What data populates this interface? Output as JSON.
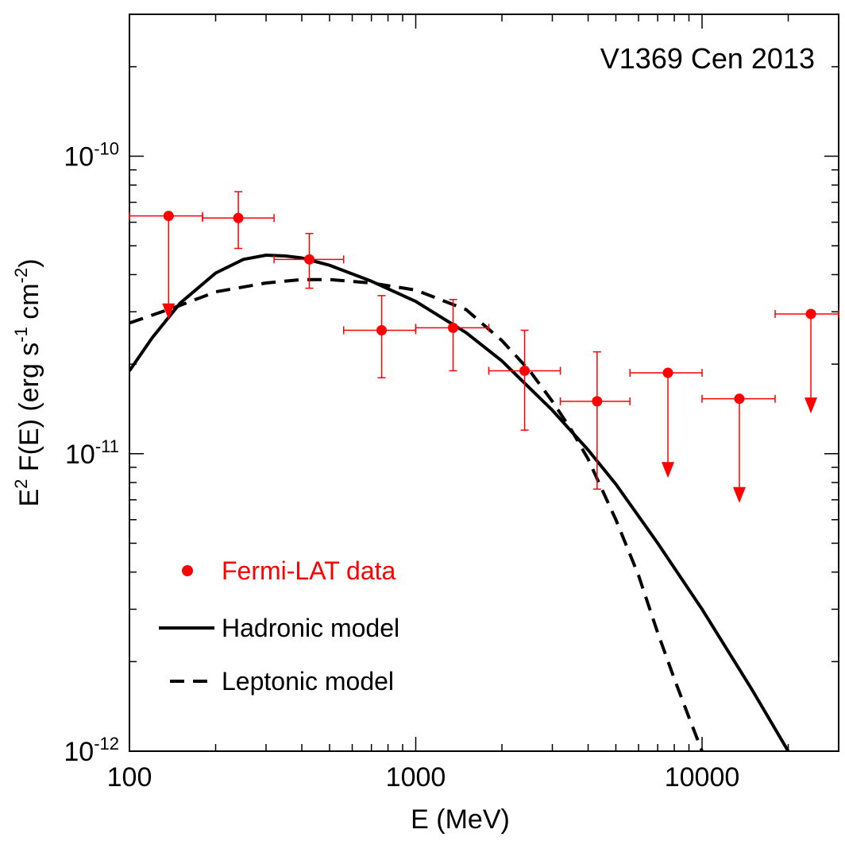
{
  "chart_data": {
    "type": "scatter",
    "title": "V1369 Cen 2013",
    "xlabel": "E (MeV)",
    "ylabel": {
      "base": "E",
      "sup1": "2",
      "mid": " F(E) (erg s",
      "sup2": "-1",
      "mid2": " cm",
      "sup3": "-2",
      "end": ")"
    },
    "xscale": "log",
    "yscale": "log",
    "xlim": [
      100,
      30000
    ],
    "ylim": [
      1e-12,
      3e-10
    ],
    "x_ticks": [
      {
        "value": 100,
        "label": "100"
      },
      {
        "value": 1000,
        "label": "1000"
      },
      {
        "value": 10000,
        "label": "10000"
      }
    ],
    "y_ticks": [
      {
        "value": 1e-12,
        "base": "10",
        "exp": "-12"
      },
      {
        "value": 1e-11,
        "base": "10",
        "exp": "-11"
      },
      {
        "value": 1e-10,
        "base": "10",
        "exp": "-10"
      }
    ],
    "legend": {
      "position": "bottom-left",
      "entries": [
        {
          "label": "Fermi-LAT data",
          "style": "marker",
          "color": "#ff0000"
        },
        {
          "label": "Hadronic model",
          "style": "solid",
          "color": "#000000"
        },
        {
          "label": "Leptonic model",
          "style": "dashed",
          "color": "#000000"
        }
      ]
    },
    "series": [
      {
        "name": "Fermi-LAT data",
        "color": "#ff0000",
        "points": [
          {
            "x": 137,
            "xlo": 100,
            "xhi": 180,
            "y": 6.3e-11,
            "upper_limit": true,
            "arrow_to": 2.9e-11
          },
          {
            "x": 240,
            "xlo": 180,
            "xhi": 320,
            "y": 6.2e-11,
            "ylo": 4.9e-11,
            "yhi": 7.6e-11
          },
          {
            "x": 425,
            "xlo": 320,
            "xhi": 560,
            "y": 4.5e-11,
            "ylo": 3.6e-11,
            "yhi": 5.5e-11
          },
          {
            "x": 760,
            "xlo": 560,
            "xhi": 1000,
            "y": 2.6e-11,
            "ylo": 1.8e-11,
            "yhi": 3.4e-11
          },
          {
            "x": 1350,
            "xlo": 1000,
            "xhi": 1800,
            "y": 2.65e-11,
            "ylo": 1.9e-11,
            "yhi": 3.3e-11
          },
          {
            "x": 2400,
            "xlo": 1800,
            "xhi": 3200,
            "y": 1.9e-11,
            "ylo": 1.2e-11,
            "yhi": 2.6e-11
          },
          {
            "x": 4300,
            "xlo": 3200,
            "xhi": 5600,
            "y": 1.5e-11,
            "ylo": 7.6e-12,
            "yhi": 2.2e-11
          },
          {
            "x": 7600,
            "xlo": 5600,
            "xhi": 10000,
            "y": 1.87e-11,
            "upper_limit": true,
            "arrow_to": 8.5e-12
          },
          {
            "x": 13500,
            "xlo": 10000,
            "xhi": 18000,
            "y": 1.53e-11,
            "upper_limit": true,
            "arrow_to": 7e-12
          },
          {
            "x": 24000,
            "xlo": 18000,
            "xhi": 30000,
            "y": 2.95e-11,
            "upper_limit": true,
            "arrow_to": 1.4e-11
          }
        ]
      },
      {
        "name": "Hadronic model",
        "style": "solid",
        "color": "#000000",
        "x": [
          100,
          120,
          150,
          200,
          250,
          300,
          350,
          400,
          500,
          700,
          1000,
          1500,
          2000,
          3000,
          4000,
          5000,
          7000,
          10000,
          15000,
          20000
        ],
        "y": [
          1.9e-11,
          2.45e-11,
          3.2e-11,
          4.05e-11,
          4.5e-11,
          4.65e-11,
          4.62e-11,
          4.55e-11,
          4.3e-11,
          3.8e-11,
          3.25e-11,
          2.55e-11,
          2.05e-11,
          1.4e-11,
          1.03e-11,
          7.9e-12,
          5e-12,
          3e-12,
          1.6e-12,
          1e-12
        ]
      },
      {
        "name": "Leptonic model",
        "style": "dashed",
        "color": "#000000",
        "x": [
          100,
          150,
          200,
          300,
          400,
          500,
          700,
          1000,
          1500,
          2000,
          2500,
          3000,
          3500,
          4000,
          5000,
          6000,
          7000,
          8000,
          9000,
          10000
        ],
        "y": [
          2.75e-11,
          3.15e-11,
          3.5e-11,
          3.75e-11,
          3.85e-11,
          3.85e-11,
          3.75e-11,
          3.55e-11,
          3.05e-11,
          2.4e-11,
          1.9e-11,
          1.5e-11,
          1.2e-11,
          9.6e-12,
          6e-12,
          3.9e-12,
          2.5e-12,
          1.75e-12,
          1.3e-12,
          1e-12
        ]
      }
    ]
  }
}
